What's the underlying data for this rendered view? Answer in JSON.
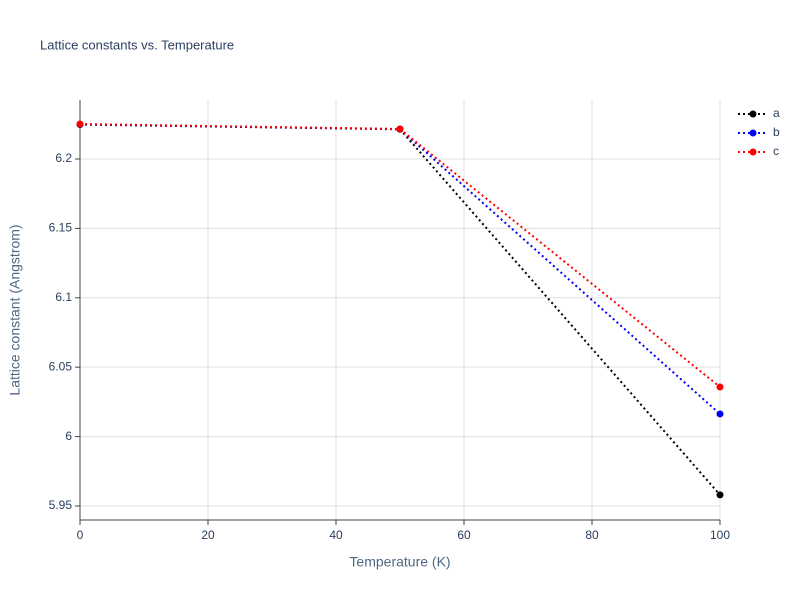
{
  "chart_data": {
    "type": "line",
    "title": "Lattice constants vs. Temperature",
    "x_label": "Temperature (K)",
    "y_label": "Lattice constant (Angstrom)",
    "x": [
      0,
      50,
      100
    ],
    "series": [
      {
        "name": "a",
        "color": "#000000",
        "values": [
          6.2248,
          6.2214,
          5.958
        ]
      },
      {
        "name": "b",
        "color": "#0000ff",
        "values": [
          6.225,
          6.2215,
          6.0163
        ]
      },
      {
        "name": "c",
        "color": "#ff0000",
        "values": [
          6.2252,
          6.2216,
          6.0357
        ]
      }
    ],
    "xlim": [
      0,
      100
    ],
    "xticks": [
      0,
      20,
      40,
      60,
      80,
      100
    ],
    "ylim": [
      5.9399,
      6.2425
    ],
    "yticks": [
      5.95,
      6,
      6.05,
      6.1,
      6.15,
      6.2
    ],
    "grid": true,
    "legend": "top-right"
  }
}
